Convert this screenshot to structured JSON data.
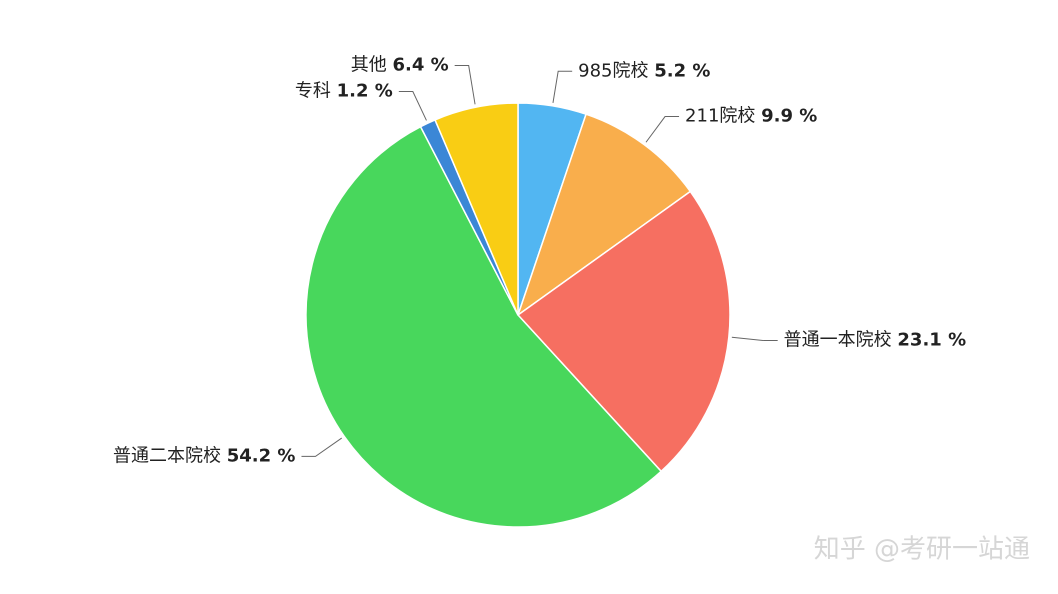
{
  "chart_data": {
    "type": "pie",
    "categories": [
      "985院校",
      "211院校",
      "普通一本院校",
      "普通二本院校",
      "专科",
      "其他"
    ],
    "values": [
      5.2,
      9.9,
      23.1,
      54.2,
      1.2,
      6.4
    ],
    "value_labels": [
      "5.2 %",
      "9.9 %",
      "23.1 %",
      "54.2 %",
      "1.2 %",
      "6.4 %"
    ],
    "colors": [
      "#52b6f2",
      "#f9ae4c",
      "#f66f61",
      "#48d75c",
      "#3b87d6",
      "#f9cd14"
    ],
    "watermark": "知乎 @考研一站通"
  }
}
